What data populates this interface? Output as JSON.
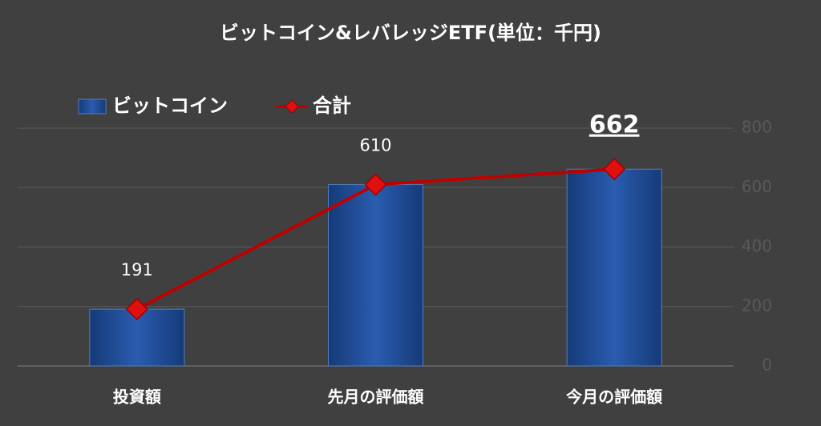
{
  "chart_data": {
    "type": "combo",
    "title": "ビットコイン&レバレッジETF(単位：千円)",
    "categories": [
      "投資額",
      "先月の評価額",
      "今月の評価額"
    ],
    "series": [
      {
        "name": "ビットコイン",
        "type": "bar",
        "color": "#1f4e9c",
        "values": [
          191,
          610,
          662
        ]
      },
      {
        "name": "合計",
        "type": "line",
        "color": "#c00000",
        "values": [
          191,
          610,
          662
        ]
      }
    ],
    "ylim": [
      0,
      800
    ],
    "yticks": [
      0,
      200,
      400,
      600,
      800
    ],
    "grid": true,
    "y_axis_side": "right"
  }
}
